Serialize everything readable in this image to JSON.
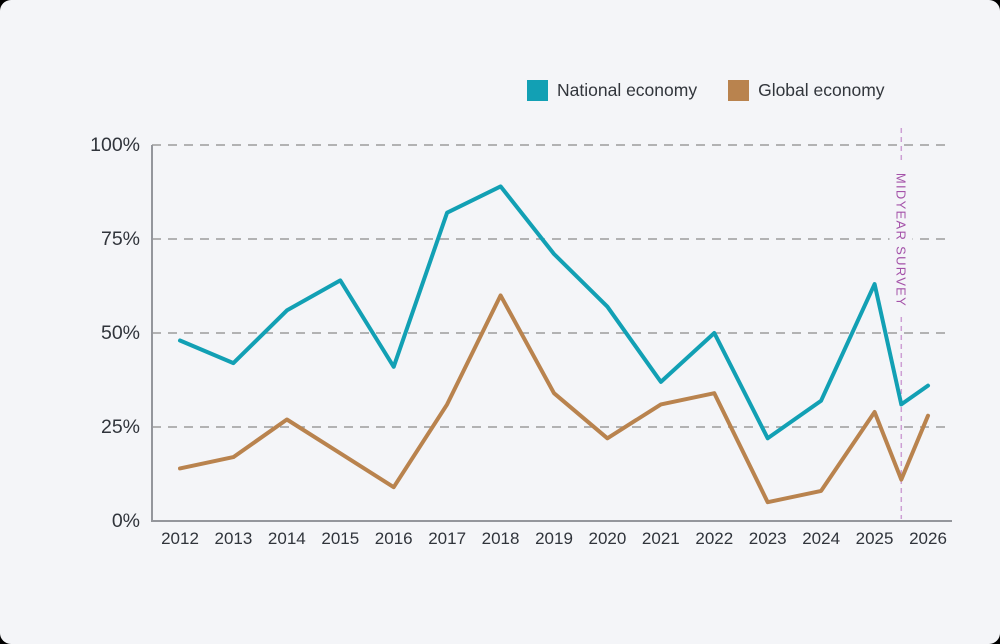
{
  "page": {
    "background_color": "#000000",
    "card_background_color": "#f4f5f8"
  },
  "legend": {
    "items": [
      {
        "label": "National economy",
        "color": "#12a0b4",
        "swatch": "national-economy-swatch"
      },
      {
        "label": "Global economy",
        "color": "#b9834e",
        "swatch": "global-economy-swatch"
      }
    ]
  },
  "chart_data": {
    "type": "line",
    "title": "",
    "x": [
      2012,
      2013,
      2014,
      2015,
      2016,
      2017,
      2018,
      2019,
      2020,
      2021,
      2022,
      2023,
      2024,
      2025,
      2025.5,
      2026
    ],
    "categories": [
      "2012",
      "2013",
      "2014",
      "2015",
      "2016",
      "2017",
      "2018",
      "2019",
      "2020",
      "2021",
      "2022",
      "2023",
      "2024",
      "2025",
      "2026"
    ],
    "series": [
      {
        "name": "National economy",
        "color": "#12a0b4",
        "values": [
          48,
          42,
          56,
          64,
          41,
          82,
          89,
          71,
          57,
          37,
          50,
          22,
          32,
          63,
          31,
          36
        ]
      },
      {
        "name": "Global economy",
        "color": "#b9834e",
        "values": [
          14,
          17,
          27,
          18,
          9,
          31,
          60,
          34,
          22,
          31,
          34,
          5,
          8,
          29,
          11,
          28
        ]
      }
    ],
    "ylim": [
      0,
      100
    ],
    "y_ticks": [
      {
        "value": 100,
        "label": "100%"
      },
      {
        "value": 75,
        "label": "75%"
      },
      {
        "value": 50,
        "label": "50%"
      },
      {
        "value": 25,
        "label": "25%"
      },
      {
        "value": 0,
        "label": "0%"
      }
    ],
    "grid": "horizontal-dashed",
    "legend_position": "top-right",
    "midyear_line_x": 2025.5,
    "midyear_label": "MIDYEAR SURVEY",
    "midyear_label_color": "#a452a9",
    "midyear_line_color": "#cd9fd4",
    "grid_color": "#9c9c9c",
    "axis_color": "#94969c",
    "label_color": "#30343b"
  }
}
